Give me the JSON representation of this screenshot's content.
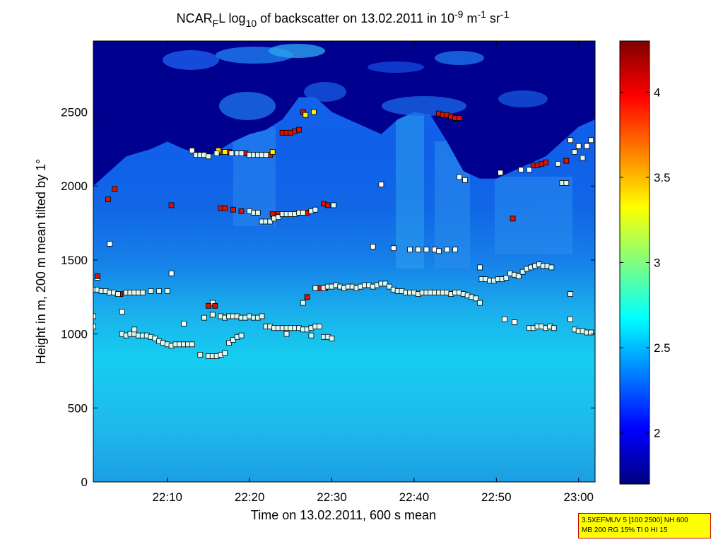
{
  "chart_data": {
    "type": "heatmap",
    "title": {
      "prefix": "NCAR",
      "sub1": "F",
      "mid1": "L log",
      "sub2": "10",
      "mid2": " of backscatter on 13.02.2011 in 10",
      "sup1": "-9",
      "mid3": " m",
      "sup2": "-1",
      "mid4": " sr",
      "sup3": "-1"
    },
    "xlabel": "Time on 13.02.2011, 600 s mean",
    "ylabel": "Height in m, 200 m mean tilted by 1°",
    "xlim_minutes_after_2200": [
      1,
      62
    ],
    "ylim": [
      0,
      2980
    ],
    "x_ticks": [
      {
        "label": "22:10",
        "value": 10
      },
      {
        "label": "22:20",
        "value": 20
      },
      {
        "label": "22:30",
        "value": 30
      },
      {
        "label": "22:40",
        "value": 40
      },
      {
        "label": "22:50",
        "value": 50
      },
      {
        "label": "23:00",
        "value": 60
      }
    ],
    "y_ticks": [
      {
        "label": "0",
        "value": 0
      },
      {
        "label": "500",
        "value": 500
      },
      {
        "label": "1000",
        "value": 1000
      },
      {
        "label": "1500",
        "value": 1500
      },
      {
        "label": "2000",
        "value": 2000
      },
      {
        "label": "2500",
        "value": 2500
      }
    ],
    "colorbar": {
      "range": [
        1.7,
        4.3
      ],
      "ticks": [
        {
          "label": "2",
          "value": 2
        },
        {
          "label": "2.5",
          "value": 2.5
        },
        {
          "label": "3",
          "value": 3
        },
        {
          "label": "3.5",
          "value": 3.5
        },
        {
          "label": "4",
          "value": 4
        }
      ]
    },
    "cloud_top_m": [
      [
        1,
        2000
      ],
      [
        3,
        2100
      ],
      [
        5,
        2200
      ],
      [
        8,
        2250
      ],
      [
        10,
        2300
      ],
      [
        12,
        2250
      ],
      [
        15,
        2200
      ],
      [
        18,
        2300
      ],
      [
        20,
        2350
      ],
      [
        22,
        2380
      ],
      [
        24,
        2450
      ],
      [
        26,
        2600
      ],
      [
        28,
        2600
      ],
      [
        30,
        2500
      ],
      [
        32,
        2450
      ],
      [
        34,
        2400
      ],
      [
        36,
        2350
      ],
      [
        38,
        2450
      ],
      [
        40,
        2500
      ],
      [
        42,
        2480
      ],
      [
        44,
        2300
      ],
      [
        46,
        2100
      ],
      [
        48,
        2050
      ],
      [
        50,
        2050
      ],
      [
        52,
        2100
      ],
      [
        54,
        2150
      ],
      [
        56,
        2200
      ],
      [
        58,
        2300
      ],
      [
        60,
        2400
      ],
      [
        62,
        2450
      ]
    ],
    "marker_series": [
      {
        "name": "white",
        "color": "#ffffff",
        "points": [
          [
            1,
            1050
          ],
          [
            1,
            1120
          ],
          [
            1.5,
            1380
          ],
          [
            3,
            1610
          ],
          [
            4.5,
            1150
          ],
          [
            10.5,
            1410
          ],
          [
            12,
            1070
          ],
          [
            13,
            2240
          ],
          [
            15.5,
            1210
          ],
          [
            35,
            1590
          ],
          [
            36,
            2010
          ],
          [
            37.5,
            1580
          ],
          [
            39.5,
            1570
          ],
          [
            40.5,
            1570
          ],
          [
            41.5,
            1570
          ],
          [
            42.5,
            1570
          ],
          [
            43,
            1560
          ],
          [
            44,
            1570
          ],
          [
            45,
            1570
          ],
          [
            45.5,
            2060
          ],
          [
            46.2,
            2040
          ],
          [
            48,
            1450
          ],
          [
            50.5,
            2090
          ],
          [
            51,
            1100
          ],
          [
            52.2,
            1080
          ],
          [
            53,
            2110
          ],
          [
            54,
            2110
          ],
          [
            59,
            2310
          ],
          [
            59,
            1100
          ],
          [
            60,
            2270
          ],
          [
            61,
            2270
          ],
          [
            61.5,
            2310
          ],
          [
            58.5,
            2170
          ]
        ]
      },
      {
        "name": "red",
        "color": "#dd1100",
        "points": [
          [
            1.5,
            1390
          ],
          [
            2.8,
            1910
          ],
          [
            3.6,
            1980
          ],
          [
            4.3,
            1270
          ],
          [
            10.5,
            1870
          ],
          [
            15,
            1190
          ],
          [
            15.8,
            1190
          ],
          [
            16.5,
            1850
          ],
          [
            17,
            1850
          ],
          [
            18,
            1840
          ],
          [
            19,
            1830
          ],
          [
            22.8,
            1810
          ],
          [
            23.5,
            1810
          ],
          [
            24,
            2360
          ],
          [
            24.5,
            2360
          ],
          [
            25,
            2360
          ],
          [
            25.5,
            2370
          ],
          [
            26,
            2380
          ],
          [
            26.5,
            2500
          ],
          [
            27,
            1250
          ],
          [
            27,
            1820
          ],
          [
            29,
            1880
          ],
          [
            29.5,
            1870
          ],
          [
            28.5,
            1310
          ],
          [
            29.2,
            1310
          ],
          [
            43,
            2490
          ],
          [
            43.5,
            2480
          ],
          [
            44,
            2480
          ],
          [
            44.5,
            2470
          ],
          [
            45,
            2460
          ],
          [
            45.5,
            2460
          ],
          [
            52,
            1780
          ],
          [
            54.5,
            2140
          ],
          [
            55,
            2140
          ],
          [
            55.5,
            2150
          ],
          [
            56,
            2160
          ],
          [
            58.5,
            2170
          ],
          [
            16.5,
            2230
          ],
          [
            17.5,
            2230
          ],
          [
            19.5,
            2220
          ],
          [
            22.5,
            2210
          ]
        ]
      },
      {
        "name": "yellow",
        "color": "#ffee00",
        "points": [
          [
            16.2,
            2240
          ],
          [
            22.8,
            2230
          ],
          [
            26.8,
            2480
          ],
          [
            27.8,
            2500
          ],
          [
            17,
            2230
          ]
        ]
      },
      {
        "name": "cyan-white",
        "color": "#d8f8f4",
        "points": [
          [
            1,
            1300
          ],
          [
            1.5,
            1300
          ],
          [
            2,
            1290
          ],
          [
            2.5,
            1290
          ],
          [
            3,
            1280
          ],
          [
            3.5,
            1280
          ],
          [
            4,
            1270
          ],
          [
            5,
            1280
          ],
          [
            5.5,
            1280
          ],
          [
            6,
            1280
          ],
          [
            6.5,
            1280
          ],
          [
            7,
            1280
          ],
          [
            8,
            1290
          ],
          [
            9,
            1290
          ],
          [
            10,
            1290
          ],
          [
            4.5,
            1000
          ],
          [
            5,
            990
          ],
          [
            5.5,
            1000
          ],
          [
            6,
            1000
          ],
          [
            6.5,
            990
          ],
          [
            7,
            990
          ],
          [
            7.5,
            990
          ],
          [
            8,
            980
          ],
          [
            8.5,
            970
          ],
          [
            9,
            950
          ],
          [
            9.5,
            940
          ],
          [
            10,
            930
          ],
          [
            10.5,
            920
          ],
          [
            11,
            930
          ],
          [
            11.5,
            930
          ],
          [
            12,
            930
          ],
          [
            12.5,
            930
          ],
          [
            13,
            930
          ],
          [
            14,
            860
          ],
          [
            15,
            850
          ],
          [
            15.5,
            850
          ],
          [
            16,
            850
          ],
          [
            16.5,
            860
          ],
          [
            17,
            870
          ],
          [
            17.5,
            940
          ],
          [
            18,
            960
          ],
          [
            18.5,
            980
          ],
          [
            19,
            990
          ],
          [
            14.5,
            1110
          ],
          [
            15.5,
            1130
          ],
          [
            16.5,
            1120
          ],
          [
            17,
            1110
          ],
          [
            17.5,
            1120
          ],
          [
            18,
            1120
          ],
          [
            18.5,
            1120
          ],
          [
            19,
            1110
          ],
          [
            19.5,
            1110
          ],
          [
            20,
            1120
          ],
          [
            20.5,
            1110
          ],
          [
            21,
            1110
          ],
          [
            21.5,
            1120
          ],
          [
            22,
            1050
          ],
          [
            22.5,
            1050
          ],
          [
            23,
            1040
          ],
          [
            23.5,
            1040
          ],
          [
            24,
            1040
          ],
          [
            24.5,
            1040
          ],
          [
            25,
            1040
          ],
          [
            25.5,
            1040
          ],
          [
            26,
            1040
          ],
          [
            26.5,
            1030
          ],
          [
            27,
            1030
          ],
          [
            27.5,
            1040
          ],
          [
            28,
            1050
          ],
          [
            28.5,
            1050
          ],
          [
            29,
            980
          ],
          [
            29.5,
            980
          ],
          [
            30,
            970
          ],
          [
            24.5,
            1000
          ],
          [
            27.5,
            990
          ],
          [
            26.5,
            1210
          ],
          [
            28,
            1310
          ],
          [
            29,
            1310
          ],
          [
            29.5,
            1320
          ],
          [
            30,
            1320
          ],
          [
            30.5,
            1330
          ],
          [
            31,
            1320
          ],
          [
            31.5,
            1310
          ],
          [
            32,
            1320
          ],
          [
            32.5,
            1320
          ],
          [
            33,
            1310
          ],
          [
            33.5,
            1320
          ],
          [
            34,
            1330
          ],
          [
            34.5,
            1330
          ],
          [
            35,
            1320
          ],
          [
            35.5,
            1330
          ],
          [
            36,
            1340
          ],
          [
            36.5,
            1340
          ],
          [
            37,
            1320
          ],
          [
            37.5,
            1300
          ],
          [
            38,
            1290
          ],
          [
            38.5,
            1290
          ],
          [
            39,
            1280
          ],
          [
            39.5,
            1280
          ],
          [
            40,
            1280
          ],
          [
            40.5,
            1270
          ],
          [
            41,
            1280
          ],
          [
            41.5,
            1280
          ],
          [
            42,
            1280
          ],
          [
            42.5,
            1280
          ],
          [
            43,
            1280
          ],
          [
            43.5,
            1280
          ],
          [
            44,
            1280
          ],
          [
            44.5,
            1270
          ],
          [
            45,
            1280
          ],
          [
            45.5,
            1280
          ],
          [
            46,
            1270
          ],
          [
            46.5,
            1260
          ],
          [
            47,
            1250
          ],
          [
            47.5,
            1240
          ],
          [
            48,
            1210
          ],
          [
            48.2,
            1370
          ],
          [
            48.7,
            1370
          ],
          [
            49.2,
            1360
          ],
          [
            49.7,
            1360
          ],
          [
            50.2,
            1370
          ],
          [
            50.7,
            1370
          ],
          [
            51.2,
            1380
          ],
          [
            51.7,
            1410
          ],
          [
            52.2,
            1400
          ],
          [
            52.7,
            1390
          ],
          [
            53.2,
            1420
          ],
          [
            53.7,
            1440
          ],
          [
            54.2,
            1450
          ],
          [
            54.7,
            1460
          ],
          [
            55.2,
            1470
          ],
          [
            55.7,
            1460
          ],
          [
            56.2,
            1460
          ],
          [
            56.7,
            1450
          ],
          [
            54,
            1040
          ],
          [
            54.5,
            1040
          ],
          [
            55,
            1050
          ],
          [
            55.5,
            1050
          ],
          [
            56,
            1040
          ],
          [
            56.5,
            1050
          ],
          [
            57,
            1040
          ],
          [
            59.5,
            1030
          ],
          [
            60,
            1020
          ],
          [
            60.5,
            1020
          ],
          [
            61,
            1010
          ],
          [
            61.5,
            1010
          ],
          [
            59,
            1270
          ],
          [
            20,
            1830
          ],
          [
            20.5,
            1820
          ],
          [
            21,
            1820
          ],
          [
            21.5,
            1760
          ],
          [
            22,
            1760
          ],
          [
            22.5,
            1760
          ],
          [
            23,
            1780
          ],
          [
            23.5,
            1790
          ],
          [
            24,
            1810
          ],
          [
            24.5,
            1810
          ],
          [
            25,
            1810
          ],
          [
            25.5,
            1810
          ],
          [
            26,
            1820
          ],
          [
            26.5,
            1820
          ],
          [
            27.5,
            1830
          ],
          [
            28,
            1840
          ],
          [
            30.2,
            1870
          ],
          [
            18.5,
            2220
          ],
          [
            19,
            2220
          ],
          [
            20,
            2210
          ],
          [
            20.5,
            2210
          ],
          [
            21,
            2210
          ],
          [
            21.5,
            2210
          ],
          [
            22,
            2210
          ],
          [
            13.5,
            2210
          ],
          [
            14,
            2210
          ],
          [
            14.5,
            2210
          ],
          [
            15,
            2200
          ],
          [
            16,
            2220
          ],
          [
            17.8,
            2220
          ],
          [
            57.5,
            2150
          ],
          [
            58,
            2020
          ],
          [
            58.5,
            2020
          ],
          [
            59.5,
            2230
          ],
          [
            60.5,
            2190
          ],
          [
            6,
            1030
          ]
        ]
      }
    ]
  },
  "info_box": {
    "line1": "3.5XEFMUV 5 [100 2500] NH 600",
    "line2": "MB 200 RG 15% TI 0 HI 15"
  },
  "colors": {
    "frame": "#000000",
    "info_bg": "#ffff00",
    "info_border": "#cc0000"
  }
}
